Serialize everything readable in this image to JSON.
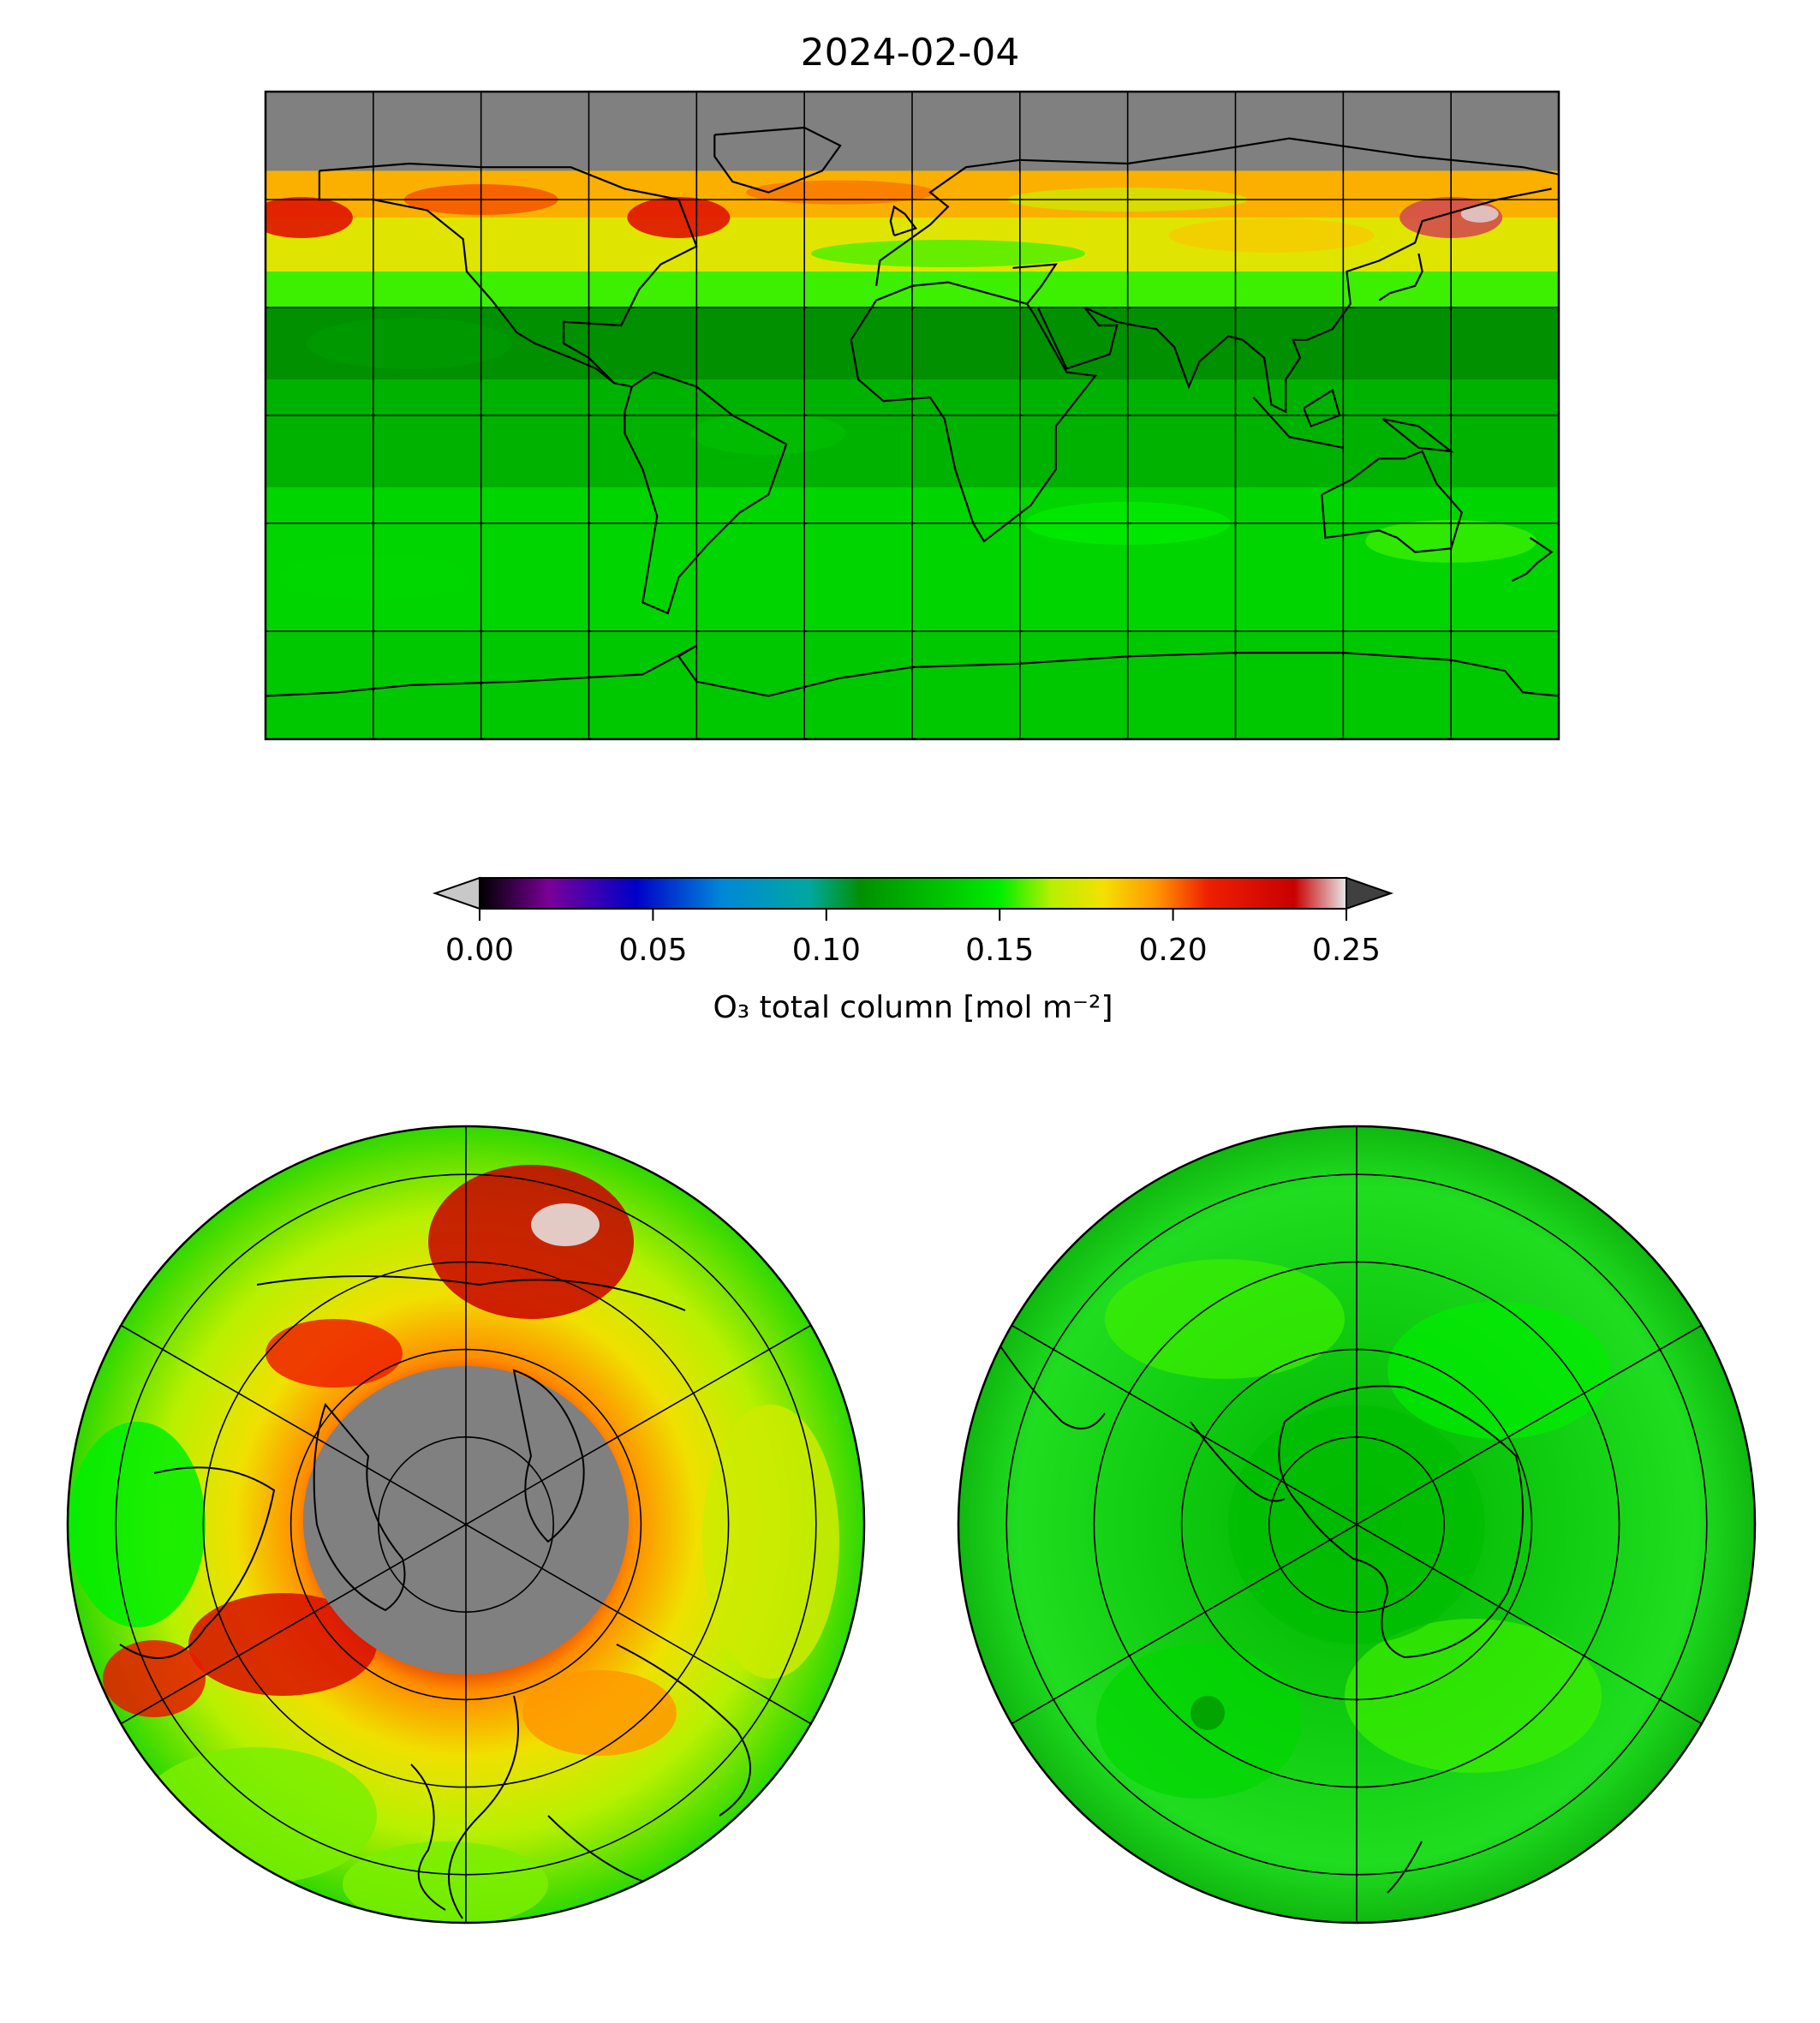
{
  "title": "2024-02-04",
  "colorbar": {
    "label": "O₃ total column [mol m⁻²]",
    "ticks": [
      "0.00",
      "0.05",
      "0.10",
      "0.15",
      "0.20",
      "0.25"
    ],
    "tick_values": [
      0.0,
      0.05,
      0.1,
      0.15,
      0.2,
      0.25
    ],
    "range": [
      0.0,
      0.25
    ],
    "extend": "both",
    "under_color": "#c8c8c8",
    "over_color": "#404040",
    "colormap": [
      {
        "v": 0.0,
        "c": "#000000"
      },
      {
        "v": 0.02,
        "c": "#7a0098"
      },
      {
        "v": 0.045,
        "c": "#0000c8"
      },
      {
        "v": 0.07,
        "c": "#0088d8"
      },
      {
        "v": 0.095,
        "c": "#00a8a0"
      },
      {
        "v": 0.11,
        "c": "#009000"
      },
      {
        "v": 0.135,
        "c": "#00c800"
      },
      {
        "v": 0.15,
        "c": "#00ee00"
      },
      {
        "v": 0.165,
        "c": "#b8f000"
      },
      {
        "v": 0.18,
        "c": "#f4e000"
      },
      {
        "v": 0.195,
        "c": "#ff9800"
      },
      {
        "v": 0.21,
        "c": "#ee2000"
      },
      {
        "v": 0.235,
        "c": "#c80000"
      },
      {
        "v": 0.25,
        "c": "#e8e8e8"
      }
    ]
  },
  "maps": {
    "global": {
      "projection": "equirectangular",
      "lon_range": [
        -180,
        180
      ],
      "lat_range": [
        -90,
        90
      ],
      "grid_lon_step": 30,
      "grid_lat_step": 30,
      "no_data_color": "#808080",
      "no_data_region": "north of ~67N (polar night)",
      "zonal_bands": [
        {
          "lat_from": 90,
          "lat_to": 68,
          "value": null
        },
        {
          "lat_from": 68,
          "lat_to": 55,
          "value": 0.19
        },
        {
          "lat_from": 55,
          "lat_to": 40,
          "value": 0.175
        },
        {
          "lat_from": 40,
          "lat_to": 30,
          "value": 0.155
        },
        {
          "lat_from": 30,
          "lat_to": 10,
          "value": 0.11
        },
        {
          "lat_from": 10,
          "lat_to": -20,
          "value": 0.125
        },
        {
          "lat_from": -20,
          "lat_to": -60,
          "value": 0.14
        },
        {
          "lat_from": -60,
          "lat_to": -90,
          "value": 0.135
        }
      ],
      "features": [
        {
          "name": "high ozone over NE Asia / Pacific",
          "lon": 150,
          "lat": 55,
          "value": 0.24
        },
        {
          "name": "high ozone over North America",
          "lon": -65,
          "lat": 55,
          "value": 0.22
        },
        {
          "name": "high ozone over Alaska",
          "lon": -170,
          "lat": 55,
          "value": 0.22
        }
      ]
    },
    "north_polar": {
      "projection": "north polar stereographic",
      "center": "North Pole",
      "no_data_color": "#808080",
      "rings": 4,
      "meridians": 6
    },
    "south_polar": {
      "projection": "south polar stereographic",
      "center": "South Pole",
      "rings": 4,
      "meridians": 6
    }
  }
}
